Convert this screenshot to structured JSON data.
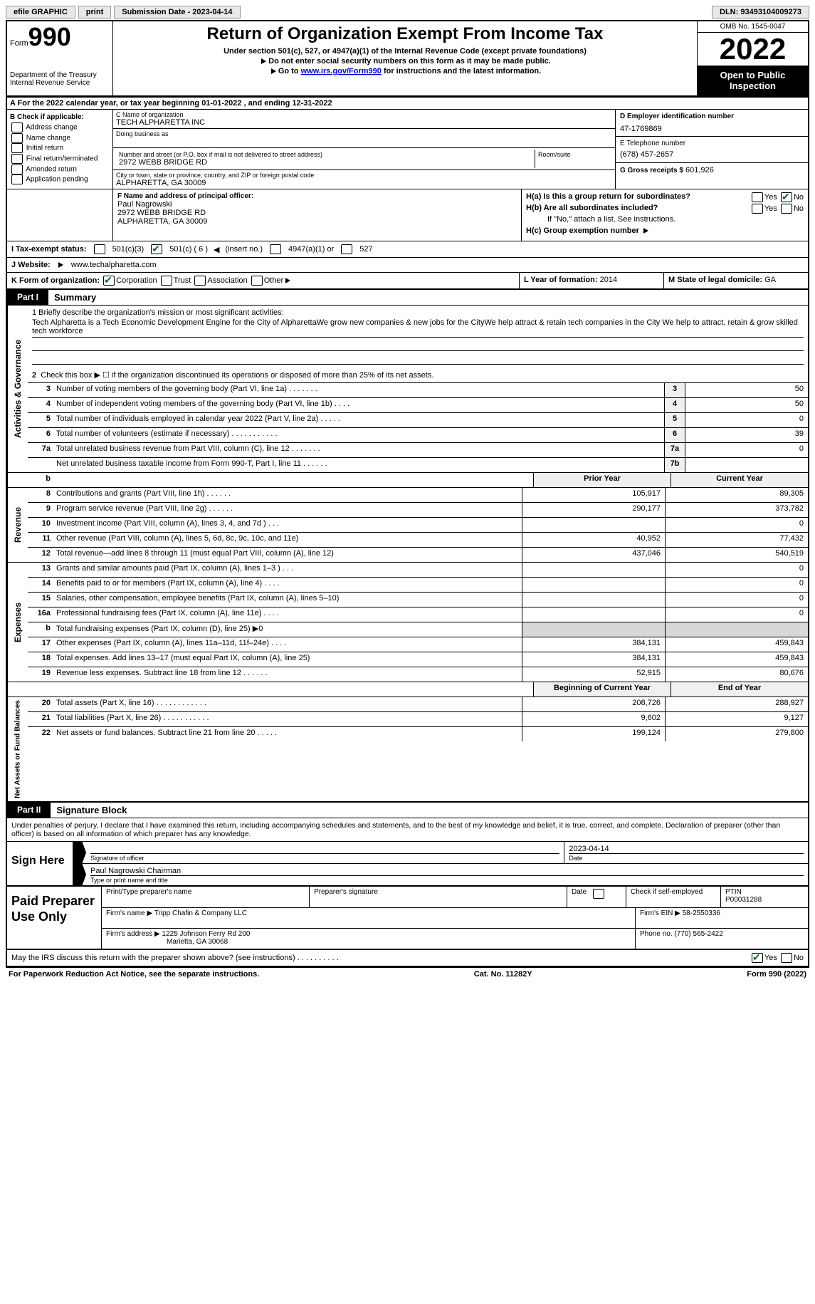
{
  "topbar": {
    "efile": "efile GRAPHIC",
    "print": "print",
    "submission_label": "Submission Date - 2023-04-14",
    "dln": "DLN: 93493104009273"
  },
  "header": {
    "form_word": "Form",
    "form_num": "990",
    "dept": "Department of the Treasury",
    "irs": "Internal Revenue Service",
    "title": "Return of Organization Exempt From Income Tax",
    "subtitle": "Under section 501(c), 527, or 4947(a)(1) of the Internal Revenue Code (except private foundations)",
    "arrow1": "Do not enter social security numbers on this form as it may be made public.",
    "arrow2_pre": "Go to ",
    "arrow2_link": "www.irs.gov/Form990",
    "arrow2_post": " for instructions and the latest information.",
    "omb": "OMB No. 1545-0047",
    "year": "2022",
    "inspection": "Open to Public Inspection"
  },
  "rowA": "A For the 2022 calendar year, or tax year beginning 01-01-2022    , and ending 12-31-2022",
  "colB": {
    "head": "B Check if applicable:",
    "items": [
      "Address change",
      "Name change",
      "Initial return",
      "Final return/terminated",
      "Amended return",
      "Application pending"
    ]
  },
  "colC": {
    "name_lbl": "C Name of organization",
    "name": "TECH ALPHARETTA INC",
    "dba_lbl": "Doing business as",
    "street_lbl": "Number and street (or P.O. box if mail is not delivered to street address)",
    "room_lbl": "Room/suite",
    "street": "2972 WEBB BRIDGE RD",
    "city_lbl": "City or town, state or province, country, and ZIP or foreign postal code",
    "city": "ALPHARETTA, GA  30009"
  },
  "colD": {
    "ein_lbl": "D Employer identification number",
    "ein": "47-1769869",
    "phone_lbl": "E Telephone number",
    "phone": "(678) 457-2657",
    "gross_lbl": "G Gross receipts $",
    "gross": "601,926"
  },
  "rowF": {
    "lbl": "F  Name and address of principal officer:",
    "name": "Paul Nagrowski",
    "addr1": "2972 WEBB BRIDGE RD",
    "addr2": "ALPHARETTA, GA  30009"
  },
  "rowH": {
    "a": "H(a)  Is this a group return for subordinates?",
    "b": "H(b)  Are all subordinates included?",
    "b_note": "If \"No,\" attach a list. See instructions.",
    "c": "H(c)  Group exemption number",
    "yes": "Yes",
    "no": "No"
  },
  "rowI": {
    "lbl": "I     Tax-exempt status:",
    "o1": "501(c)(3)",
    "o2": "501(c) ( 6 )",
    "o2_note": "(insert no.)",
    "o3": "4947(a)(1) or",
    "o4": "527"
  },
  "rowJ": {
    "lbl": "J    Website:",
    "val": "www.techalpharetta.com"
  },
  "rowK": {
    "lbl": "K Form of organization:",
    "o1": "Corporation",
    "o2": "Trust",
    "o3": "Association",
    "o4": "Other"
  },
  "rowL": {
    "lbl": "L Year of formation:",
    "val": "2014"
  },
  "rowM": {
    "lbl": "M State of legal domicile:",
    "val": "GA"
  },
  "part1": {
    "tab": "Part I",
    "title": "Summary"
  },
  "sides": {
    "ag": "Activities & Governance",
    "rev": "Revenue",
    "exp": "Expenses",
    "na": "Net Assets or Fund Balances"
  },
  "mission": {
    "lbl": "1   Briefly describe the organization's mission or most significant activities:",
    "text": "Tech Alpharetta is a Tech Economic Development Engine for the City of AlpharettaWe grow new companies & new jobs for the CityWe help attract & retain tech companies in the City We help to attract, retain & grow skilled tech workforce"
  },
  "line2": "Check this box  ▶  ☐  if the organization discontinued its operations or disposed of more than 25% of its net assets.",
  "cols": {
    "prior": "Prior Year",
    "current": "Current Year",
    "boy": "Beginning of Current Year",
    "eoy": "End of Year"
  },
  "lines_ag": [
    {
      "n": "3",
      "d": "Number of voting members of the governing body (Part VI, line 1a)   .    .    .    .    .    .    .",
      "box": "3",
      "v": "50"
    },
    {
      "n": "4",
      "d": "Number of independent voting members of the governing body (Part VI, line 1b)   .    .    .    .",
      "box": "4",
      "v": "50"
    },
    {
      "n": "5",
      "d": "Total number of individuals employed in calendar year 2022 (Part V, line 2a)   .    .    .    .    .",
      "box": "5",
      "v": "0"
    },
    {
      "n": "6",
      "d": "Total number of volunteers (estimate if necessary)    .    .    .    .    .    .    .    .    .    .    .",
      "box": "6",
      "v": "39"
    },
    {
      "n": "7a",
      "d": "Total unrelated business revenue from Part VIII, column (C), line 12   .    .    .    .    .    .    .",
      "box": "7a",
      "v": "0"
    },
    {
      "n": "",
      "d": "Net unrelated business taxable income from Form 990-T, Part I, line 11   .    .    .    .    .    .",
      "box": "7b",
      "v": ""
    }
  ],
  "lines_rev": [
    {
      "n": "8",
      "d": "Contributions and grants (Part VIII, line 1h)   .    .    .    .    .    .",
      "p": "105,917",
      "c": "89,305"
    },
    {
      "n": "9",
      "d": "Program service revenue (Part VIII, line 2g)   .    .    .    .    .    .",
      "p": "290,177",
      "c": "373,782"
    },
    {
      "n": "10",
      "d": "Investment income (Part VIII, column (A), lines 3, 4, and 7d )   .    .    .",
      "p": "",
      "c": "0"
    },
    {
      "n": "11",
      "d": "Other revenue (Part VIII, column (A), lines 5, 6d, 8c, 9c, 10c, and 11e)",
      "p": "40,952",
      "c": "77,432"
    },
    {
      "n": "12",
      "d": "Total revenue—add lines 8 through 11 (must equal Part VIII, column (A), line 12)",
      "p": "437,046",
      "c": "540,519"
    }
  ],
  "lines_exp": [
    {
      "n": "13",
      "d": "Grants and similar amounts paid (Part IX, column (A), lines 1–3 )   .    .    .",
      "p": "",
      "c": "0"
    },
    {
      "n": "14",
      "d": "Benefits paid to or for members (Part IX, column (A), line 4)   .    .    .    .",
      "p": "",
      "c": "0"
    },
    {
      "n": "15",
      "d": "Salaries, other compensation, employee benefits (Part IX, column (A), lines 5–10)",
      "p": "",
      "c": "0"
    },
    {
      "n": "16a",
      "d": "Professional fundraising fees (Part IX, column (A), line 11e)   .    .    .    .",
      "p": "",
      "c": "0"
    },
    {
      "n": "b",
      "d": "Total fundraising expenses (Part IX, column (D), line 25) ▶0",
      "p": "shade",
      "c": "shade"
    },
    {
      "n": "17",
      "d": "Other expenses (Part IX, column (A), lines 11a–11d, 11f–24e)   .    .    .    .",
      "p": "384,131",
      "c": "459,843"
    },
    {
      "n": "18",
      "d": "Total expenses. Add lines 13–17 (must equal Part IX, column (A), line 25)",
      "p": "384,131",
      "c": "459,843"
    },
    {
      "n": "19",
      "d": "Revenue less expenses. Subtract line 18 from line 12   .    .    .    .    .    .",
      "p": "52,915",
      "c": "80,676"
    }
  ],
  "lines_na": [
    {
      "n": "20",
      "d": "Total assets (Part X, line 16)   .    .    .    .    .    .    .    .    .    .    .    .",
      "p": "208,726",
      "c": "288,927"
    },
    {
      "n": "21",
      "d": "Total liabilities (Part X, line 26)   .    .    .    .    .    .    .    .    .    .    .",
      "p": "9,602",
      "c": "9,127"
    },
    {
      "n": "22",
      "d": "Net assets or fund balances. Subtract line 21 from line 20   .    .    .    .    .",
      "p": "199,124",
      "c": "279,800"
    }
  ],
  "part2": {
    "tab": "Part II",
    "title": "Signature Block"
  },
  "sig_intro": "Under penalties of perjury, I declare that I have examined this return, including accompanying schedules and statements, and to the best of my knowledge and belief, it is true, correct, and complete. Declaration of preparer (other than officer) is based on all information of which preparer has any knowledge.",
  "sign": {
    "here": "Sign Here",
    "sig_lbl": "Signature of officer",
    "date": "2023-04-14",
    "date_lbl": "Date",
    "name": "Paul Nagrowski  Chairman",
    "name_lbl": "Type or print name and title"
  },
  "prep": {
    "here": "Paid Preparer Use Only",
    "name_lbl": "Print/Type preparer's name",
    "sig_lbl": "Preparer's signature",
    "date_lbl": "Date",
    "check_lbl": "Check         if self-employed",
    "ptin_lbl": "PTIN",
    "ptin": "P00031288",
    "firm_name_lbl": "Firm's name    ▶",
    "firm_name": "Tripp Chafin & Company LLC",
    "firm_ein_lbl": "Firm's EIN ▶",
    "firm_ein": "58-2550336",
    "firm_addr_lbl": "Firm's address ▶",
    "firm_addr1": "1225 Johnson Ferry Rd 200",
    "firm_addr2": "Marietta, GA  30068",
    "phone_lbl": "Phone no.",
    "phone": "(770) 565-2422"
  },
  "discuss": {
    "q": "May the IRS discuss this return with the preparer shown above? (see instructions)   .    .    .    .    .    .    .    .    .    .",
    "yes": "Yes",
    "no": "No"
  },
  "footer": {
    "left": "For Paperwork Reduction Act Notice, see the separate instructions.",
    "mid": "Cat. No. 11282Y",
    "right": "Form 990 (2022)"
  }
}
